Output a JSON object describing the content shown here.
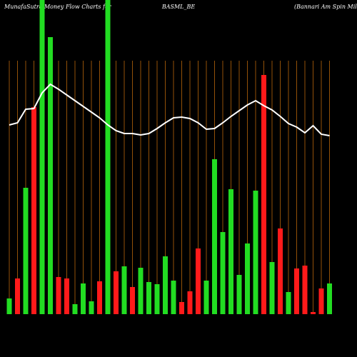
{
  "chart_data": {
    "type": "bar",
    "title": "MunafaSutra  Money Flow  Charts for",
    "subtitle": "BASML_BE",
    "company": "(Bannari  Am Spin  Mill",
    "ylim": [
      0,
      440
    ],
    "grid": true,
    "grid_color": "#b8660b",
    "background": "#000000",
    "values": [
      22,
      50,
      177,
      290,
      440,
      388,
      52,
      50,
      14,
      43,
      18,
      46,
      440,
      60,
      67,
      38,
      65,
      45,
      42,
      81,
      47,
      17,
      32,
      92,
      47,
      217,
      115,
      175,
      55,
      99,
      173,
      335,
      73,
      120,
      31,
      64,
      68,
      3,
      36,
      43
    ],
    "colors": [
      "#22dd22",
      "#ff1a1a",
      "#22dd22",
      "#ff1a1a",
      "#22dd22",
      "#22dd22",
      "#ff1a1a",
      "#ff1a1a",
      "#22dd22",
      "#22dd22",
      "#22dd22",
      "#ff1a1a",
      "#22dd22",
      "#ff1a1a",
      "#22dd22",
      "#ff1a1a",
      "#22dd22",
      "#22dd22",
      "#22dd22",
      "#22dd22",
      "#22dd22",
      "#ff1a1a",
      "#ff1a1a",
      "#ff1a1a",
      "#22dd22",
      "#22dd22",
      "#22dd22",
      "#22dd22",
      "#22dd22",
      "#22dd22",
      "#22dd22",
      "#ff1a1a",
      "#22dd22",
      "#ff1a1a",
      "#22dd22",
      "#ff1a1a",
      "#ff1a1a",
      "#ff1a1a",
      "#ff1a1a",
      "#22dd22"
    ],
    "line_values": [
      265,
      268,
      287,
      288,
      310,
      322,
      315,
      307,
      299,
      291,
      283,
      275,
      265,
      257,
      253,
      253,
      251,
      253,
      260,
      268,
      275,
      276,
      274,
      268,
      259,
      260,
      268,
      277,
      285,
      293,
      299,
      292,
      286,
      277,
      267,
      262,
      254,
      264,
      252,
      250
    ],
    "line_color": "#ffffff"
  }
}
